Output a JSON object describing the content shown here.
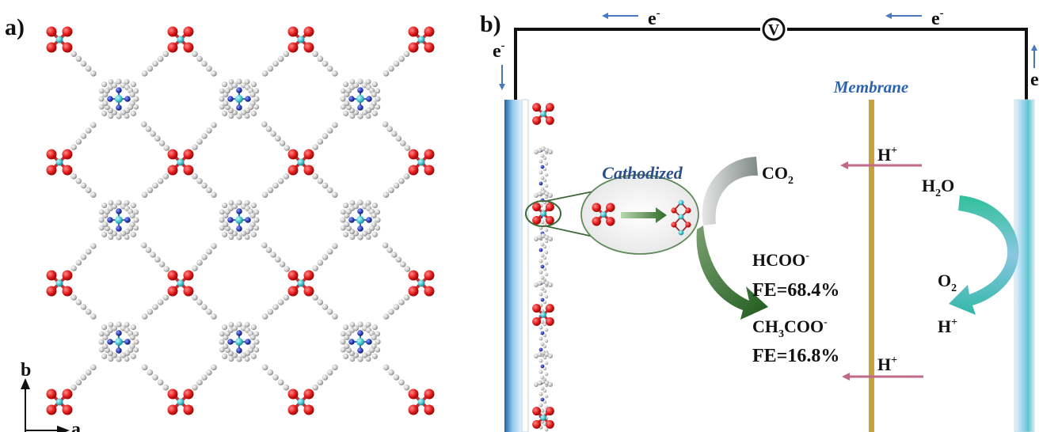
{
  "panels": {
    "a": {
      "label": "a)"
    },
    "b": {
      "label": "b)"
    }
  },
  "axes": {
    "b": "b",
    "a": "a"
  },
  "circuit": {
    "electron": "e",
    "electron_sup": "-",
    "voltmeter": "V"
  },
  "membrane": {
    "label": "Membrane"
  },
  "cathode": {
    "label": "Cathodized"
  },
  "species": {
    "co2_main": "CO",
    "co2_sub": "2",
    "h_plus": "H",
    "plus_sup": "+",
    "h2o_main": "H",
    "h2o_sub": "2",
    "h2o_tail": "O",
    "o2_main": "O",
    "o2_sub": "2",
    "hcoo": "HCOO",
    "minus_sup": "-",
    "fe1": "FE=68.4%",
    "ch3coo_pre": "CH",
    "ch3coo_sub": "3",
    "ch3coo_tail": "COO",
    "fe2": "FE=16.8%"
  },
  "colors": {
    "metal": "#3ec3d0",
    "oxygen": "#e01818",
    "nitrogen": "#2a3cb0",
    "carbon": "#c2c2c2",
    "membrane": "#c9a13c",
    "electrode": "#5aa0d8",
    "arrow_blue": "#4a78c0",
    "arrow_pink": "#c06a8a",
    "arrow_green": "#2c6a2a",
    "arrow_teal": "#34b8a2"
  }
}
